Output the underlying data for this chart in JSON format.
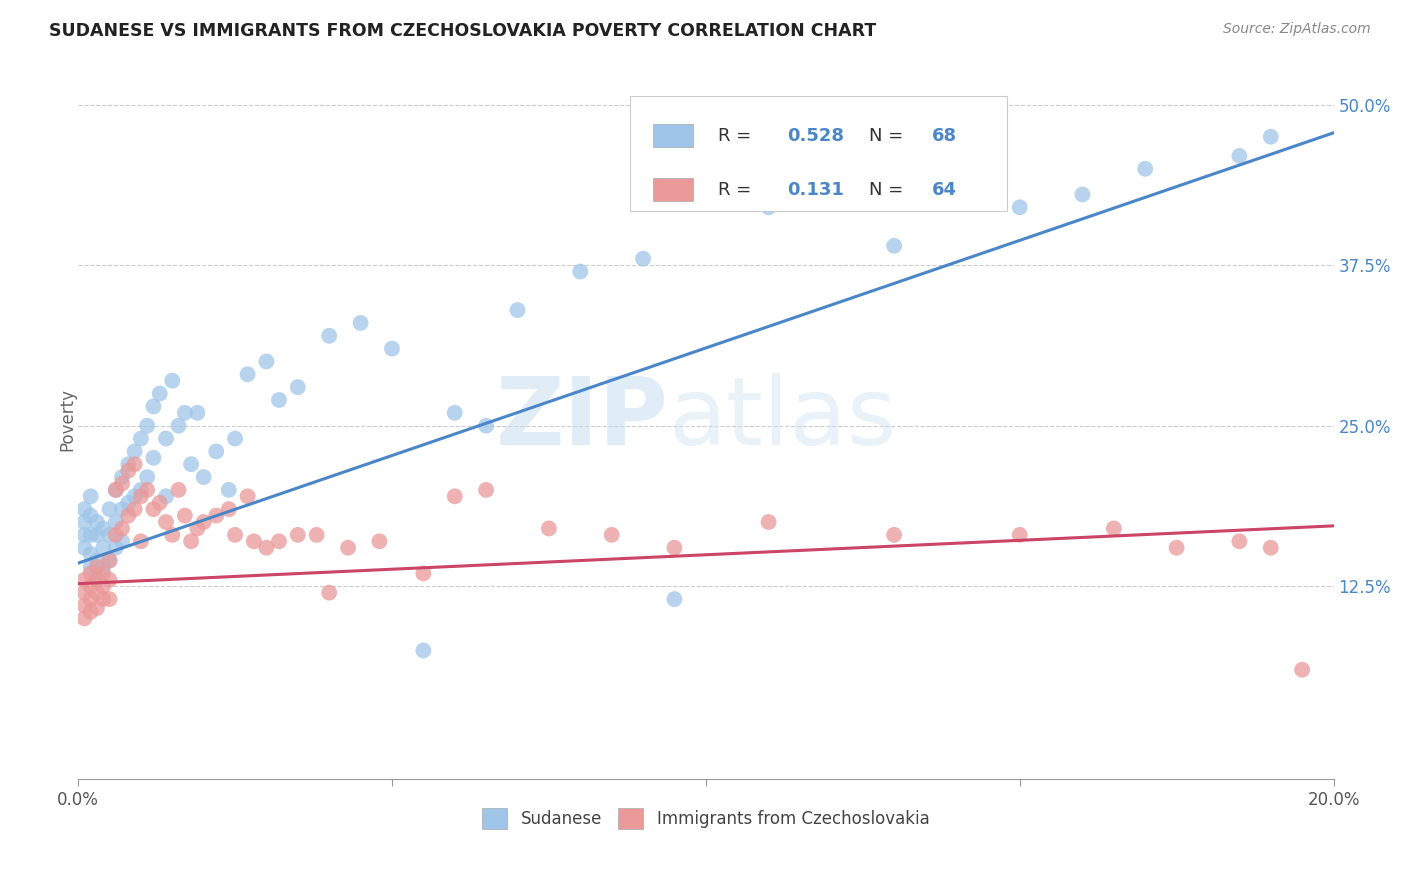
{
  "title": "SUDANESE VS IMMIGRANTS FROM CZECHOSLOVAKIA POVERTY CORRELATION CHART",
  "source": "Source: ZipAtlas.com",
  "ylabel": "Poverty",
  "yticks": [
    "12.5%",
    "25.0%",
    "37.5%",
    "50.0%"
  ],
  "ytick_vals": [
    0.125,
    0.25,
    0.375,
    0.5
  ],
  "xrange": [
    0.0,
    0.2
  ],
  "yrange": [
    -0.025,
    0.535
  ],
  "blue_color": "#9fc5e8",
  "pink_color": "#ea9999",
  "blue_line_color": "#4a86c8",
  "pink_line_color": "#cc4466",
  "blue_R": 0.528,
  "blue_N": 68,
  "pink_R": 0.131,
  "pink_N": 64,
  "watermark_zip": "ZIP",
  "watermark_atlas": "atlas",
  "legend_label_blue": "Sudanese",
  "legend_label_pink": "Immigrants from Czechoslovakia",
  "blue_line_x0": 0.0,
  "blue_line_y0": 0.143,
  "blue_line_x1": 0.2,
  "blue_line_y1": 0.478,
  "pink_line_x0": 0.0,
  "pink_line_y0": 0.127,
  "pink_line_x1": 0.2,
  "pink_line_y1": 0.172,
  "blue_points_x": [
    0.001,
    0.001,
    0.001,
    0.001,
    0.002,
    0.002,
    0.002,
    0.002,
    0.002,
    0.003,
    0.003,
    0.003,
    0.003,
    0.004,
    0.004,
    0.004,
    0.005,
    0.005,
    0.005,
    0.006,
    0.006,
    0.006,
    0.007,
    0.007,
    0.007,
    0.008,
    0.008,
    0.009,
    0.009,
    0.01,
    0.01,
    0.011,
    0.011,
    0.012,
    0.012,
    0.013,
    0.014,
    0.014,
    0.015,
    0.016,
    0.017,
    0.018,
    0.019,
    0.02,
    0.022,
    0.024,
    0.025,
    0.027,
    0.03,
    0.032,
    0.035,
    0.04,
    0.045,
    0.05,
    0.055,
    0.06,
    0.065,
    0.07,
    0.08,
    0.09,
    0.095,
    0.11,
    0.13,
    0.15,
    0.16,
    0.17,
    0.185,
    0.19
  ],
  "blue_points_y": [
    0.185,
    0.175,
    0.165,
    0.155,
    0.195,
    0.18,
    0.165,
    0.15,
    0.14,
    0.175,
    0.165,
    0.145,
    0.13,
    0.17,
    0.155,
    0.14,
    0.185,
    0.165,
    0.145,
    0.2,
    0.175,
    0.155,
    0.21,
    0.185,
    0.16,
    0.22,
    0.19,
    0.23,
    0.195,
    0.24,
    0.2,
    0.25,
    0.21,
    0.265,
    0.225,
    0.275,
    0.24,
    0.195,
    0.285,
    0.25,
    0.26,
    0.22,
    0.26,
    0.21,
    0.23,
    0.2,
    0.24,
    0.29,
    0.3,
    0.27,
    0.28,
    0.32,
    0.33,
    0.31,
    0.075,
    0.26,
    0.25,
    0.34,
    0.37,
    0.38,
    0.115,
    0.42,
    0.39,
    0.42,
    0.43,
    0.45,
    0.46,
    0.475
  ],
  "pink_points_x": [
    0.001,
    0.001,
    0.001,
    0.001,
    0.002,
    0.002,
    0.002,
    0.002,
    0.003,
    0.003,
    0.003,
    0.003,
    0.004,
    0.004,
    0.004,
    0.005,
    0.005,
    0.005,
    0.006,
    0.006,
    0.007,
    0.007,
    0.008,
    0.008,
    0.009,
    0.009,
    0.01,
    0.01,
    0.011,
    0.012,
    0.013,
    0.014,
    0.015,
    0.016,
    0.017,
    0.018,
    0.019,
    0.02,
    0.022,
    0.024,
    0.025,
    0.027,
    0.028,
    0.03,
    0.032,
    0.035,
    0.038,
    0.04,
    0.043,
    0.048,
    0.055,
    0.06,
    0.065,
    0.075,
    0.085,
    0.095,
    0.11,
    0.13,
    0.15,
    0.165,
    0.175,
    0.185,
    0.19,
    0.195
  ],
  "pink_points_y": [
    0.13,
    0.12,
    0.11,
    0.1,
    0.135,
    0.125,
    0.115,
    0.105,
    0.14,
    0.13,
    0.12,
    0.108,
    0.135,
    0.125,
    0.115,
    0.145,
    0.13,
    0.115,
    0.2,
    0.165,
    0.205,
    0.17,
    0.215,
    0.18,
    0.22,
    0.185,
    0.195,
    0.16,
    0.2,
    0.185,
    0.19,
    0.175,
    0.165,
    0.2,
    0.18,
    0.16,
    0.17,
    0.175,
    0.18,
    0.185,
    0.165,
    0.195,
    0.16,
    0.155,
    0.16,
    0.165,
    0.165,
    0.12,
    0.155,
    0.16,
    0.135,
    0.195,
    0.2,
    0.17,
    0.165,
    0.155,
    0.175,
    0.165,
    0.165,
    0.17,
    0.155,
    0.16,
    0.155,
    0.06
  ]
}
